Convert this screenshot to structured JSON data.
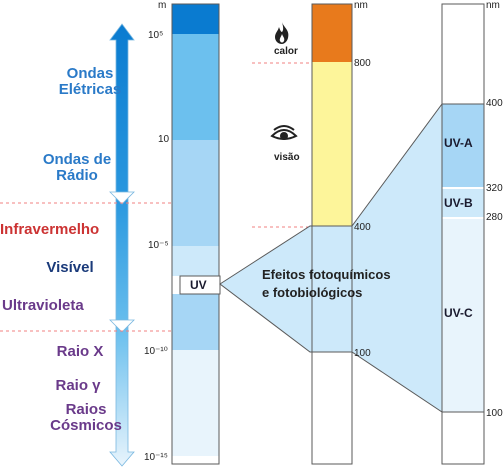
{
  "colors": {
    "blue_dark": "#0a7bd0",
    "blue_mid": "#6cc0ee",
    "blue_light": "#a6d6f5",
    "blue_pale": "#cde9fa",
    "blue_faint": "#e8f4fc",
    "red": "#cc3333",
    "purple": "#6a3a8a",
    "navy": "#1a3a7a",
    "orange": "#e87a1c",
    "yellow": "#fdf59a",
    "dash": "#f08080"
  },
  "left_labels": {
    "ondas_eletricas": "Ondas\nElétricas",
    "ondas_de_radio": "Ondas de\nRádio",
    "infravermelho": "Infravermelho",
    "visivel": "Visível",
    "ultravioleta": "Ultravioleta",
    "raio_x": "Raio X",
    "raio_gamma": "Raio γ",
    "raios_cosmicos": "Raios\nCósmicos"
  },
  "column1": {
    "unit": "m",
    "ticks": [
      "10⁵",
      "10",
      "10⁻⁵",
      "10⁻¹⁰",
      "10⁻¹⁵"
    ],
    "uv_label": "UV"
  },
  "column2": {
    "unit": "nm",
    "calor": "calor",
    "visao": "visão",
    "ticks": [
      "800",
      "400",
      "100"
    ],
    "icons": [
      "flame-icon",
      "eye-icon"
    ]
  },
  "column3": {
    "unit": "nm",
    "ticks": [
      "400",
      "320",
      "280",
      "100"
    ],
    "bands": [
      "UV-A",
      "UV-B",
      "UV-C"
    ]
  },
  "note": "Efeitos fotoquímicos\ne fotobiológicos"
}
